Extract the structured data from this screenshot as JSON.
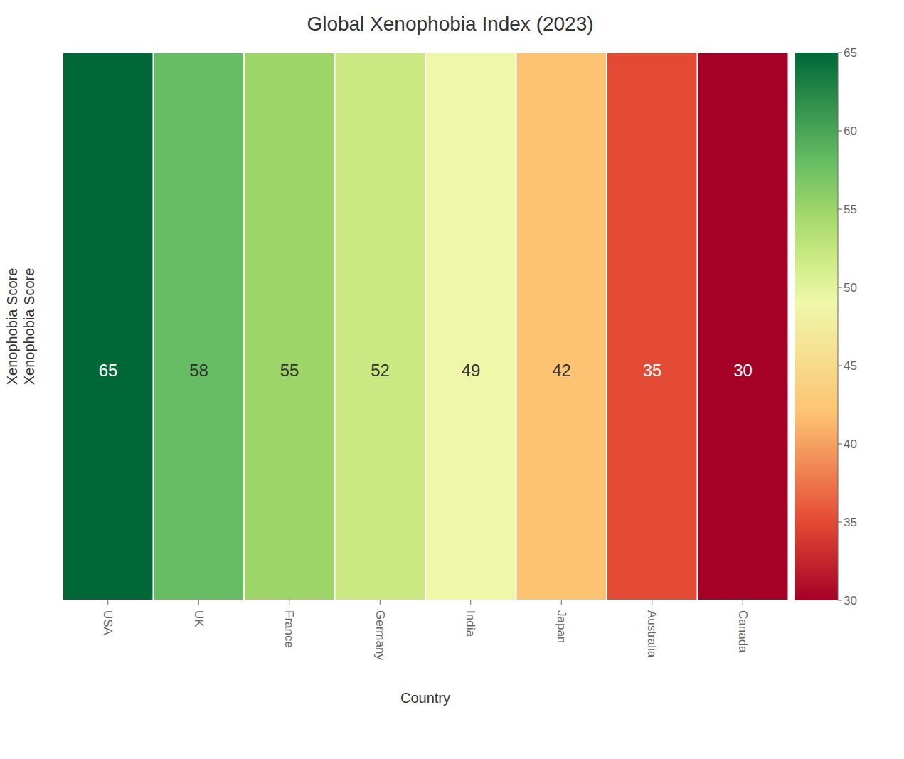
{
  "chart_data": {
    "type": "heatmap",
    "title": "Global Xenophobia Index (2023)",
    "categories": [
      "USA",
      "UK",
      "France",
      "Germany",
      "India",
      "Japan",
      "Australia",
      "Canada"
    ],
    "values": [
      65,
      58,
      55,
      52,
      49,
      42,
      35,
      30
    ],
    "colors": [
      "#006837",
      "#66bd63",
      "#9dd569",
      "#cae982",
      "#eff8a9",
      "#fdc373",
      "#e34a33",
      "#a50026"
    ],
    "xlabel": "Country",
    "ylabel": "Xenophobia Score\nXenophobia Score",
    "colorbar_range": [
      30,
      65
    ],
    "colorbar_ticks": [
      30,
      35,
      40,
      45,
      50,
      55,
      60,
      65
    ],
    "data_labels": true,
    "tick_labels": "x"
  }
}
